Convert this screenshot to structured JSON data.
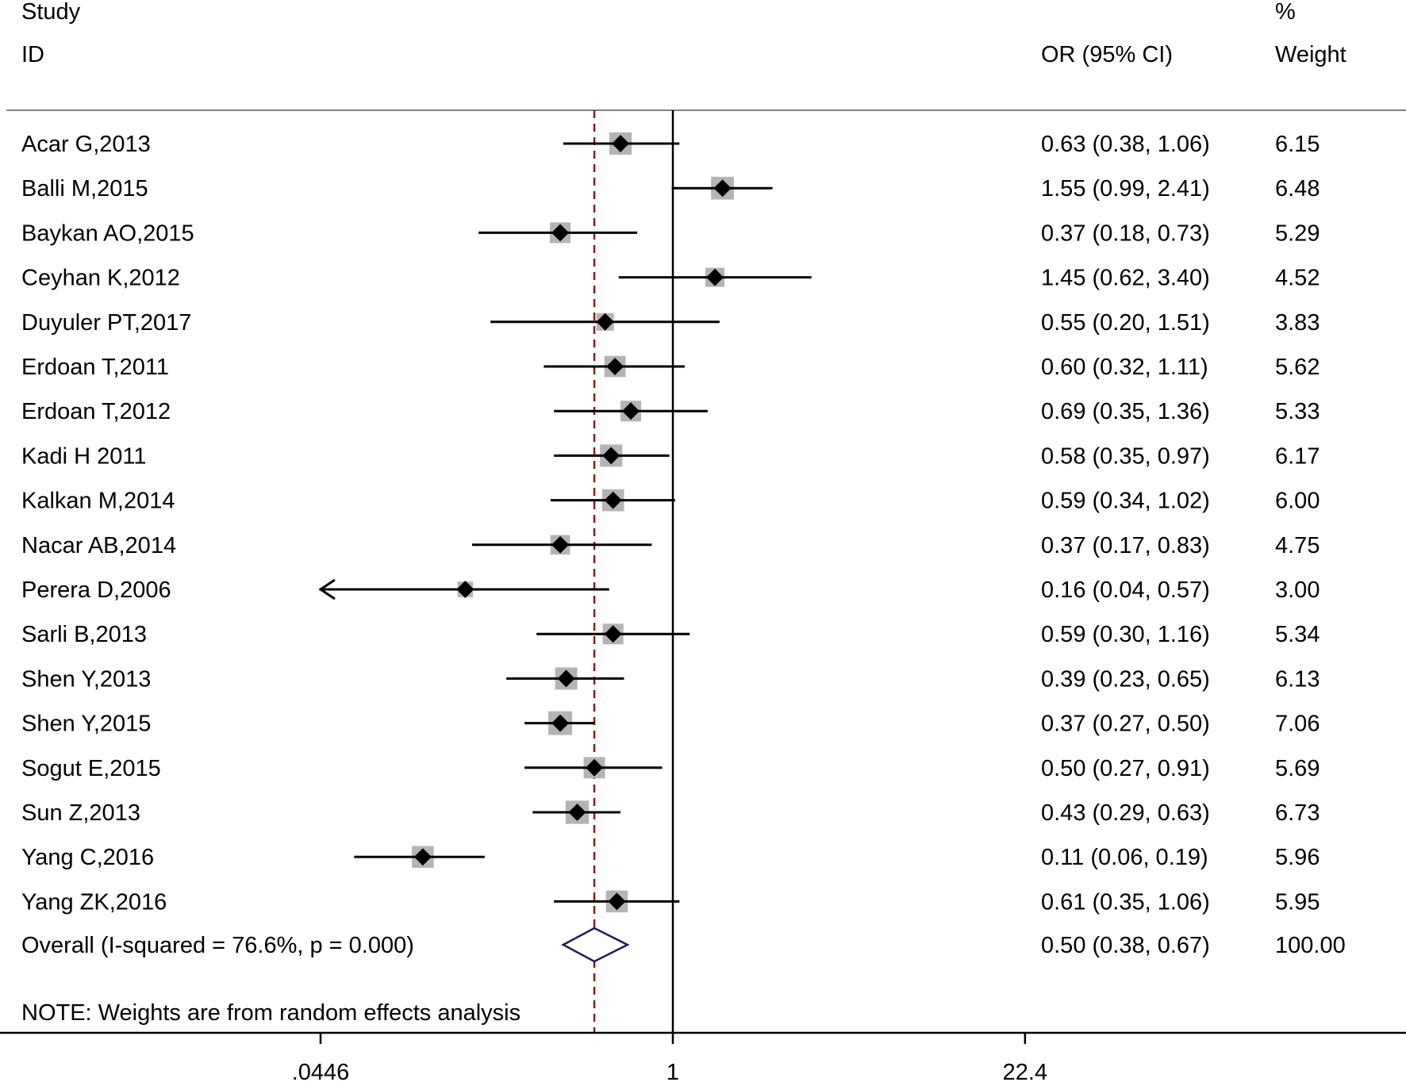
{
  "chart_data": {
    "type": "forest",
    "headers": {
      "study_line1": "Study",
      "study_line2": "ID",
      "or": "OR (95% CI)",
      "weight_line1": "%",
      "weight_line2": "Weight"
    },
    "x_scale": "log",
    "x_range": [
      0.0446,
      22.4
    ],
    "x_ticks": [
      {
        "value": 0.0446,
        "label": ".0446"
      },
      {
        "value": 1,
        "label": "1"
      },
      {
        "value": 22.4,
        "label": "22.4"
      }
    ],
    "reference_line": 1,
    "pooled_line": 0.5,
    "studies": [
      {
        "id": "Acar G,2013",
        "or": 0.63,
        "lo": 0.38,
        "hi": 1.06,
        "weight": 6.15,
        "or_text": "0.63 (0.38, 1.06)",
        "weight_text": "6.15"
      },
      {
        "id": "Balli M,2015",
        "or": 1.55,
        "lo": 0.99,
        "hi": 2.41,
        "weight": 6.48,
        "or_text": "1.55 (0.99, 2.41)",
        "weight_text": "6.48"
      },
      {
        "id": "Baykan AO,2015",
        "or": 0.37,
        "lo": 0.18,
        "hi": 0.73,
        "weight": 5.29,
        "or_text": "0.37 (0.18, 0.73)",
        "weight_text": "5.29"
      },
      {
        "id": "Ceyhan K,2012",
        "or": 1.45,
        "lo": 0.62,
        "hi": 3.4,
        "weight": 4.52,
        "or_text": "1.45 (0.62, 3.40)",
        "weight_text": "4.52"
      },
      {
        "id": "Duyuler PT,2017",
        "or": 0.55,
        "lo": 0.2,
        "hi": 1.51,
        "weight": 3.83,
        "or_text": "0.55 (0.20, 1.51)",
        "weight_text": "3.83"
      },
      {
        "id": "Erdoan T,2011",
        "or": 0.6,
        "lo": 0.32,
        "hi": 1.11,
        "weight": 5.62,
        "or_text": "0.60 (0.32, 1.11)",
        "weight_text": "5.62"
      },
      {
        "id": "Erdoan T,2012",
        "or": 0.69,
        "lo": 0.35,
        "hi": 1.36,
        "weight": 5.33,
        "or_text": "0.69 (0.35, 1.36)",
        "weight_text": "5.33"
      },
      {
        "id": "Kadi H 2011",
        "or": 0.58,
        "lo": 0.35,
        "hi": 0.97,
        "weight": 6.17,
        "or_text": "0.58 (0.35, 0.97)",
        "weight_text": "6.17"
      },
      {
        "id": "Kalkan M,2014",
        "or": 0.59,
        "lo": 0.34,
        "hi": 1.02,
        "weight": 6.0,
        "or_text": "0.59 (0.34, 1.02)",
        "weight_text": "6.00"
      },
      {
        "id": "Nacar AB,2014",
        "or": 0.37,
        "lo": 0.17,
        "hi": 0.83,
        "weight": 4.75,
        "or_text": "0.37 (0.17, 0.83)",
        "weight_text": "4.75"
      },
      {
        "id": "Perera D,2006",
        "or": 0.16,
        "lo": 0.04,
        "hi": 0.57,
        "weight": 3.0,
        "or_text": "0.16 (0.04, 0.57)",
        "weight_text": "3.00"
      },
      {
        "id": "Sarli B,2013",
        "or": 0.59,
        "lo": 0.3,
        "hi": 1.16,
        "weight": 5.34,
        "or_text": "0.59 (0.30, 1.16)",
        "weight_text": "5.34"
      },
      {
        "id": "Shen Y,2013",
        "or": 0.39,
        "lo": 0.23,
        "hi": 0.65,
        "weight": 6.13,
        "or_text": "0.39 (0.23, 0.65)",
        "weight_text": "6.13"
      },
      {
        "id": "Shen Y,2015",
        "or": 0.37,
        "lo": 0.27,
        "hi": 0.5,
        "weight": 7.06,
        "or_text": "0.37 (0.27, 0.50)",
        "weight_text": "7.06"
      },
      {
        "id": "Sogut E,2015",
        "or": 0.5,
        "lo": 0.27,
        "hi": 0.91,
        "weight": 5.69,
        "or_text": "0.50 (0.27, 0.91)",
        "weight_text": "5.69"
      },
      {
        "id": "Sun Z,2013",
        "or": 0.43,
        "lo": 0.29,
        "hi": 0.63,
        "weight": 6.73,
        "or_text": "0.43 (0.29, 0.63)",
        "weight_text": "6.73"
      },
      {
        "id": "Yang C,2016",
        "or": 0.11,
        "lo": 0.06,
        "hi": 0.19,
        "weight": 5.96,
        "or_text": "0.11 (0.06, 0.19)",
        "weight_text": "5.96"
      },
      {
        "id": "Yang ZK,2016",
        "or": 0.61,
        "lo": 0.35,
        "hi": 1.06,
        "weight": 5.95,
        "or_text": "0.61 (0.35, 1.06)",
        "weight_text": "5.95"
      }
    ],
    "overall": {
      "label": "Overall  (I-squared = 76.6%, p = 0.000)",
      "or": 0.5,
      "lo": 0.38,
      "hi": 0.67,
      "or_text": "0.50 (0.38, 0.67)",
      "weight_text": "100.00"
    },
    "note": "NOTE: Weights are from random effects analysis",
    "colors": {
      "text": "#000000",
      "ci_line": "#000000",
      "box": "#b4b4b4",
      "point": "#000000",
      "pooled_line": "#8b1a1a",
      "diamond": "#1a1a5e",
      "rule": "#808080"
    }
  }
}
